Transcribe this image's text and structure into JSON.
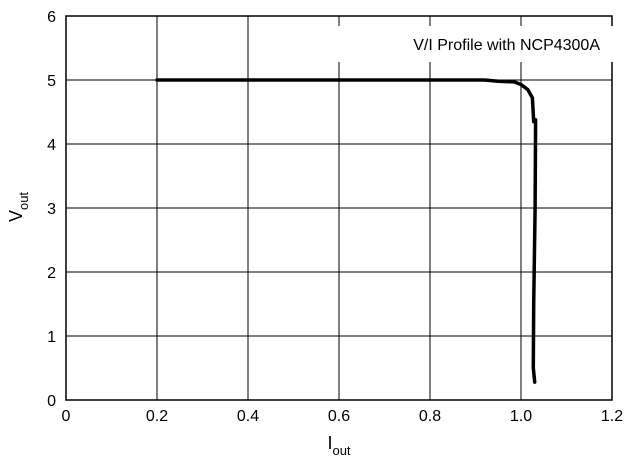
{
  "chart_data": {
    "type": "line",
    "title": "",
    "annotation": "V/I Profile with NCP4300A",
    "xlabel": {
      "main": "I",
      "sub": "out"
    },
    "ylabel": {
      "main": "V",
      "sub": "out"
    },
    "xlim": [
      0,
      1.2
    ],
    "ylim": [
      0,
      6
    ],
    "x_ticks": [
      0,
      0.2,
      0.4,
      0.6,
      0.8,
      1.0,
      1.2
    ],
    "x_tick_labels": [
      "0",
      "0.2",
      "0.4",
      "0.6",
      "0.8",
      "1.0",
      "1.2"
    ],
    "y_ticks": [
      0,
      1,
      2,
      3,
      4,
      5,
      6
    ],
    "y_tick_labels": [
      "0",
      "1",
      "2",
      "3",
      "4",
      "5",
      "6"
    ],
    "grid": true,
    "line_color": "#000000",
    "series": [
      {
        "x": [
          0.2,
          0.5,
          0.8,
          0.92,
          0.95,
          0.985,
          1.0,
          1.015,
          1.025,
          1.028,
          1.032,
          1.031,
          1.028,
          1.027,
          1.03
        ],
        "y": [
          5.0,
          5.0,
          5.0,
          5.0,
          4.98,
          4.97,
          4.93,
          4.85,
          4.72,
          4.35,
          4.38,
          3.0,
          1.5,
          0.5,
          0.28
        ]
      }
    ]
  }
}
